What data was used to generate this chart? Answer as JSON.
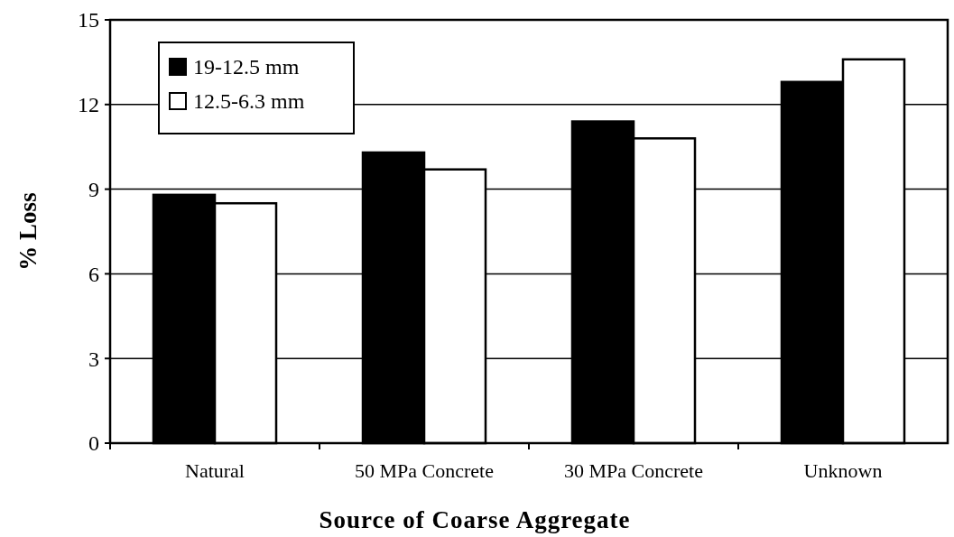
{
  "chart_data": {
    "type": "bar",
    "xlabel": "Source of Coarse Aggregate",
    "ylabel": "% Loss",
    "categories": [
      "Natural",
      "50 MPa Concrete",
      "30 MPa Concrete",
      "Unknown"
    ],
    "series": [
      {
        "name": "19-12.5 mm",
        "color": "#000000",
        "values": [
          8.8,
          10.3,
          11.4,
          12.8
        ]
      },
      {
        "name": "12.5-6.3 mm",
        "color": "#ffffff",
        "values": [
          8.5,
          9.7,
          10.8,
          13.6
        ]
      }
    ],
    "ylim": [
      0,
      15
    ],
    "yticks": [
      0,
      3,
      6,
      9,
      12,
      15
    ],
    "grid": "y",
    "legend": "top left"
  }
}
